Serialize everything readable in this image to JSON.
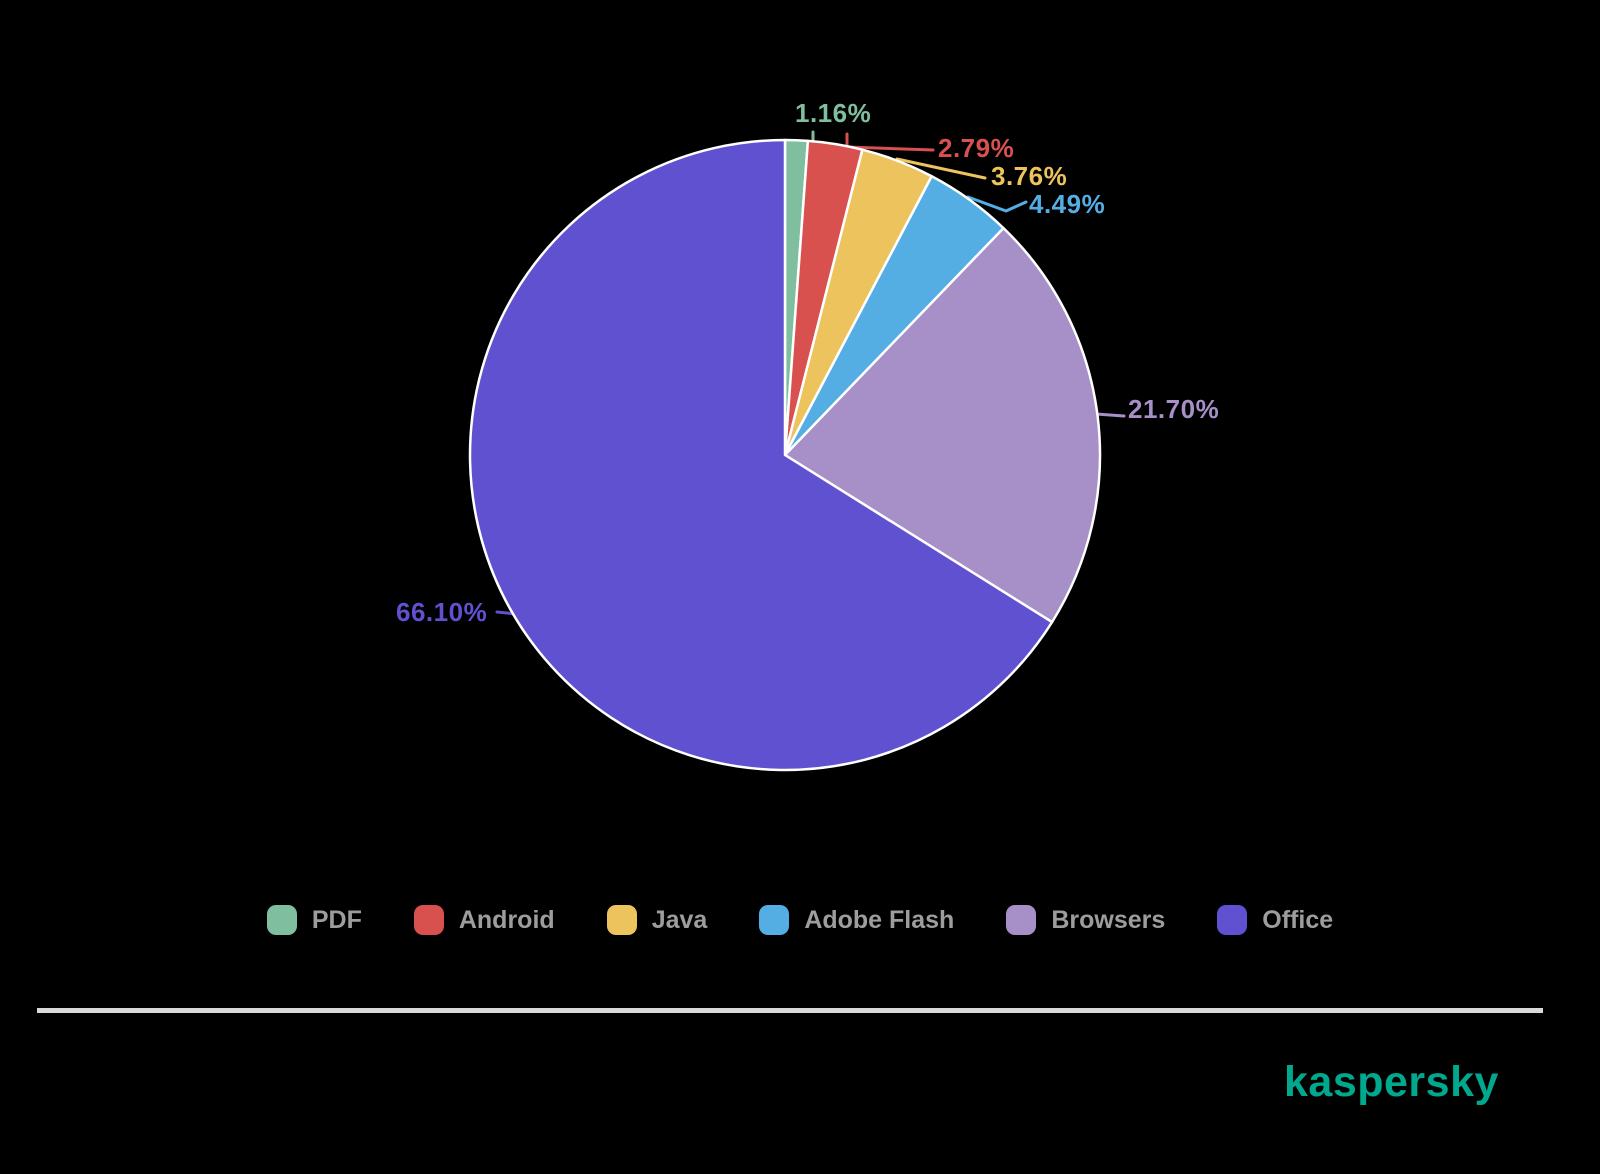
{
  "background_color": "#000000",
  "chart_data": {
    "type": "pie",
    "title": "",
    "direction": "clockwise",
    "start_angle_deg": -90,
    "legend_position": "bottom",
    "slices": [
      {
        "label": "PDF",
        "value": 1.16,
        "percent_label": "1.16%",
        "color": "#7FBFA0"
      },
      {
        "label": "Android",
        "value": 2.79,
        "percent_label": "2.79%",
        "color": "#D8514F"
      },
      {
        "label": "Java",
        "value": 3.76,
        "percent_label": "3.76%",
        "color": "#ECC35C"
      },
      {
        "label": "Adobe Flash",
        "value": 4.49,
        "percent_label": "4.49%",
        "color": "#54AEE4"
      },
      {
        "label": "Browsers",
        "value": 21.7,
        "percent_label": "21.70%",
        "color": "#A78FC7"
      },
      {
        "label": "Office",
        "value": 66.1,
        "percent_label": "66.10%",
        "color": "#6051D1"
      }
    ]
  },
  "footer": {
    "logo_text": "kaspersky",
    "logo_color": "#00A88E",
    "divider_color": "#D9D9D9"
  }
}
